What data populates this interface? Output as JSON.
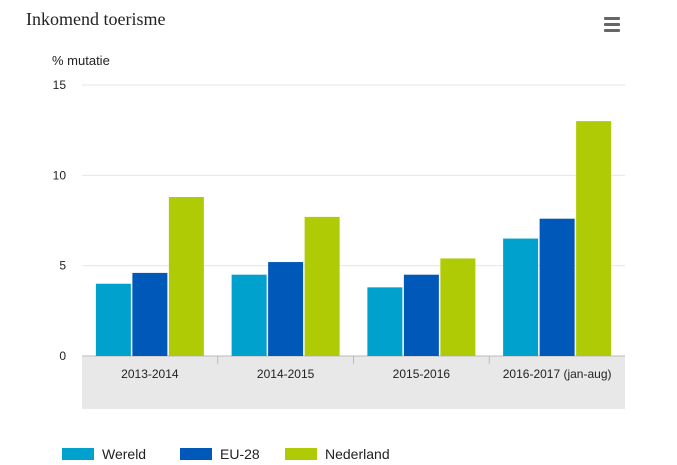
{
  "header": {
    "title": "Inkomend toerisme",
    "menu_icon": "hamburger-menu-icon"
  },
  "colors": {
    "Wereld": "#00a1cd",
    "EU-28": "#0058b8",
    "Nederland": "#afcb05",
    "category_band": "#e8e8e8",
    "grid": "#e6e6e6"
  },
  "chart_data": {
    "type": "bar",
    "title": "Inkomend toerisme",
    "ylabel": "% mutatie",
    "xlabel": "",
    "ylim": [
      0,
      15
    ],
    "yticks": [
      0,
      5,
      10,
      15
    ],
    "grid": true,
    "legend_position": "bottom",
    "categories": [
      "2013-2014",
      "2014-2015",
      "2015-2016",
      "2016-2017 (jan-aug)"
    ],
    "series": [
      {
        "name": "Wereld",
        "values": [
          4.0,
          4.5,
          3.8,
          6.5
        ]
      },
      {
        "name": "EU-28",
        "values": [
          4.6,
          5.2,
          4.5,
          7.6
        ]
      },
      {
        "name": "Nederland",
        "values": [
          8.8,
          7.7,
          5.4,
          13.0
        ]
      }
    ]
  }
}
